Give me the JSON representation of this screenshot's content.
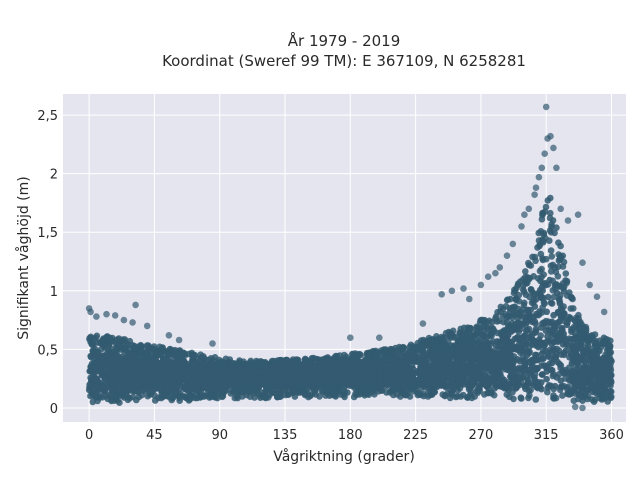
{
  "chart_data": {
    "type": "scatter",
    "title": "År 1979 - 2019",
    "subtitle": "Koordinat (Sweref 99 TM): E 367109, N 6258281",
    "xlabel": "Vågriktning (grader)",
    "ylabel": "Signifikant våghöjd (m)",
    "xlim": [
      -18,
      370
    ],
    "ylim": [
      -0.12,
      2.68
    ],
    "x_ticks": [
      0,
      45,
      90,
      135,
      180,
      225,
      270,
      315,
      360
    ],
    "x_tick_labels": [
      "0",
      "45",
      "90",
      "135",
      "180",
      "225",
      "270",
      "315",
      "360"
    ],
    "y_ticks": [
      0,
      0.5,
      1,
      1.5,
      2,
      2.5
    ],
    "y_tick_labels": [
      "0",
      "0,5",
      "1",
      "1,5",
      "2",
      "2,5"
    ],
    "grid": true,
    "marker_color": "#335a70",
    "background_color": "#e5e5ef",
    "upper_envelope": {
      "x": [
        0,
        10,
        20,
        30,
        45,
        60,
        75,
        90,
        105,
        120,
        135,
        150,
        165,
        180,
        195,
        210,
        225,
        240,
        255,
        270,
        280,
        290,
        300,
        305,
        310,
        315,
        320,
        325,
        330,
        335,
        340,
        350,
        360
      ],
      "y": [
        0.62,
        0.62,
        0.6,
        0.57,
        0.53,
        0.5,
        0.46,
        0.43,
        0.41,
        0.4,
        0.41,
        0.42,
        0.44,
        0.46,
        0.49,
        0.52,
        0.56,
        0.62,
        0.68,
        0.75,
        0.82,
        0.95,
        1.15,
        1.35,
        1.6,
        1.85,
        1.75,
        1.45,
        1.1,
        0.85,
        0.72,
        0.62,
        0.58
      ]
    },
    "lower_envelope": {
      "x": [
        0,
        45,
        90,
        135,
        180,
        225,
        270,
        300,
        315,
        330,
        360
      ],
      "y": [
        0.03,
        0.05,
        0.07,
        0.09,
        0.09,
        0.09,
        0.08,
        0.06,
        0.05,
        0.04,
        0.03
      ]
    },
    "outliers": [
      {
        "x": 0,
        "y": 0.85
      },
      {
        "x": 1,
        "y": 0.82
      },
      {
        "x": 5,
        "y": 0.78
      },
      {
        "x": 12,
        "y": 0.8
      },
      {
        "x": 18,
        "y": 0.79
      },
      {
        "x": 24,
        "y": 0.75
      },
      {
        "x": 30,
        "y": 0.73
      },
      {
        "x": 32,
        "y": 0.88
      },
      {
        "x": 40,
        "y": 0.7
      },
      {
        "x": 55,
        "y": 0.62
      },
      {
        "x": 62,
        "y": 0.58
      },
      {
        "x": 85,
        "y": 0.55
      },
      {
        "x": 180,
        "y": 0.6
      },
      {
        "x": 200,
        "y": 0.6
      },
      {
        "x": 230,
        "y": 0.72
      },
      {
        "x": 243,
        "y": 0.97
      },
      {
        "x": 250,
        "y": 1.0
      },
      {
        "x": 258,
        "y": 1.02
      },
      {
        "x": 262,
        "y": 0.93
      },
      {
        "x": 270,
        "y": 1.05
      },
      {
        "x": 275,
        "y": 1.12
      },
      {
        "x": 280,
        "y": 1.15
      },
      {
        "x": 283,
        "y": 1.2
      },
      {
        "x": 288,
        "y": 1.3
      },
      {
        "x": 292,
        "y": 1.4
      },
      {
        "x": 298,
        "y": 1.55
      },
      {
        "x": 300,
        "y": 1.65
      },
      {
        "x": 303,
        "y": 1.7
      },
      {
        "x": 307,
        "y": 1.82
      },
      {
        "x": 308,
        "y": 1.88
      },
      {
        "x": 310,
        "y": 1.97
      },
      {
        "x": 312,
        "y": 2.05
      },
      {
        "x": 314,
        "y": 2.17
      },
      {
        "x": 316,
        "y": 2.3
      },
      {
        "x": 318,
        "y": 2.32
      },
      {
        "x": 320,
        "y": 2.22
      },
      {
        "x": 315,
        "y": 2.57
      },
      {
        "x": 322,
        "y": 2.05
      },
      {
        "x": 325,
        "y": 1.7
      },
      {
        "x": 330,
        "y": 1.6
      },
      {
        "x": 337,
        "y": 1.65
      },
      {
        "x": 340,
        "y": 1.24
      },
      {
        "x": 345,
        "y": 1.05
      },
      {
        "x": 350,
        "y": 0.95
      },
      {
        "x": 355,
        "y": 0.82
      },
      {
        "x": 340,
        "y": 0.0
      },
      {
        "x": 335,
        "y": 0.01
      }
    ]
  }
}
